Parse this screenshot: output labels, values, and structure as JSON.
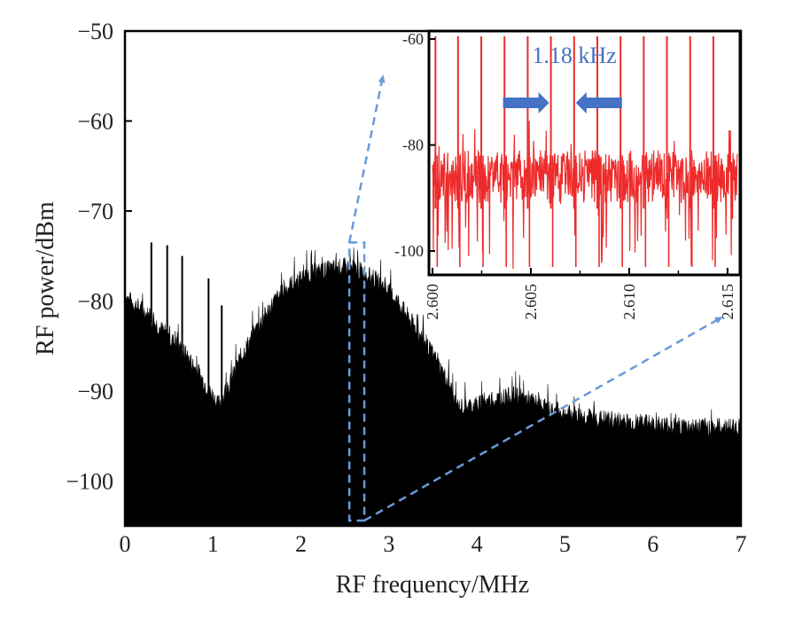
{
  "chart_data": [
    {
      "type": "area",
      "xlabel": "RF frequency/MHz",
      "ylabel": "RF power/dBm",
      "xlim": [
        0,
        7
      ],
      "ylim": [
        -105,
        -50
      ],
      "xticks": [
        0,
        1,
        2,
        3,
        4,
        5,
        6,
        7
      ],
      "xtick_labels": [
        "0",
        "1",
        "2",
        "3",
        "4",
        "5",
        "6",
        "7"
      ],
      "yticks": [
        -50,
        -60,
        -70,
        -80,
        -90,
        -100
      ],
      "ytick_labels": [
        "−50",
        "−60",
        "−70",
        "−80",
        "−90",
        "−100"
      ],
      "fill_color": "#000000",
      "envelope": {
        "x": [
          0,
          0.1,
          0.2,
          0.3,
          0.4,
          0.5,
          0.6,
          0.7,
          0.8,
          0.9,
          1.0,
          1.05,
          1.1,
          1.2,
          1.3,
          1.5,
          1.7,
          1.9,
          2.1,
          2.3,
          2.5,
          2.7,
          2.9,
          3.1,
          3.3,
          3.5,
          3.7,
          3.75,
          3.8,
          4.0,
          4.2,
          4.4,
          4.6,
          4.8,
          5.0,
          5.2,
          5.5,
          5.8,
          6.0,
          6.3,
          6.6,
          7.0
        ],
        "y": [
          -80,
          -80.8,
          -81.5,
          -82.5,
          -83.5,
          -84.5,
          -85.5,
          -86.5,
          -88,
          -89.5,
          -91,
          -92,
          -91.5,
          -89.5,
          -87,
          -83.5,
          -80.5,
          -78.5,
          -77.5,
          -77,
          -76.7,
          -77.2,
          -78.5,
          -80.5,
          -83.5,
          -86.5,
          -90,
          -92,
          -92.3,
          -92,
          -91.5,
          -91,
          -91.5,
          -92.5,
          -93,
          -93.3,
          -93.7,
          -94,
          -94.2,
          -94.4,
          -94.5,
          -94.5
        ]
      },
      "spurs": [
        {
          "x": 0.3,
          "y": -73.5
        },
        {
          "x": 0.48,
          "y": -73.8
        },
        {
          "x": 0.65,
          "y": -75
        },
        {
          "x": 0.95,
          "y": -77.5
        },
        {
          "x": 1.1,
          "y": -80.5
        }
      ],
      "highlight_region": {
        "x": [
          2.55,
          2.72
        ],
        "y": [
          -105,
          -73.5
        ]
      },
      "annotation_color": "#6a9bd8"
    },
    {
      "type": "line",
      "title": "1.18 kHz",
      "xlim": [
        2.6,
        2.6155
      ],
      "ylim": [
        -104,
        -59
      ],
      "xticks": [
        2.6,
        2.605,
        2.61,
        2.615
      ],
      "xtick_labels": [
        "2.600",
        "2.605",
        "2.610",
        "2.615"
      ],
      "minor_xticks": [
        2.6025,
        2.6075,
        2.6125
      ],
      "yticks": [
        -60,
        -80,
        -100
      ],
      "ytick_labels": [
        "-60",
        "-80",
        "-100"
      ],
      "line_color": "#ee2b2b",
      "baseline_mean": -86,
      "peak_value": -59.5,
      "peak_x": [
        2.60015,
        2.6013,
        2.60248,
        2.60366,
        2.60484,
        2.60602,
        2.6072,
        2.60838,
        2.60956,
        2.61074,
        2.61192,
        2.6131,
        2.61428
      ],
      "arrow_color": "#4472c4",
      "spacing_marker_x": [
        2.60602,
        2.6072
      ]
    }
  ]
}
